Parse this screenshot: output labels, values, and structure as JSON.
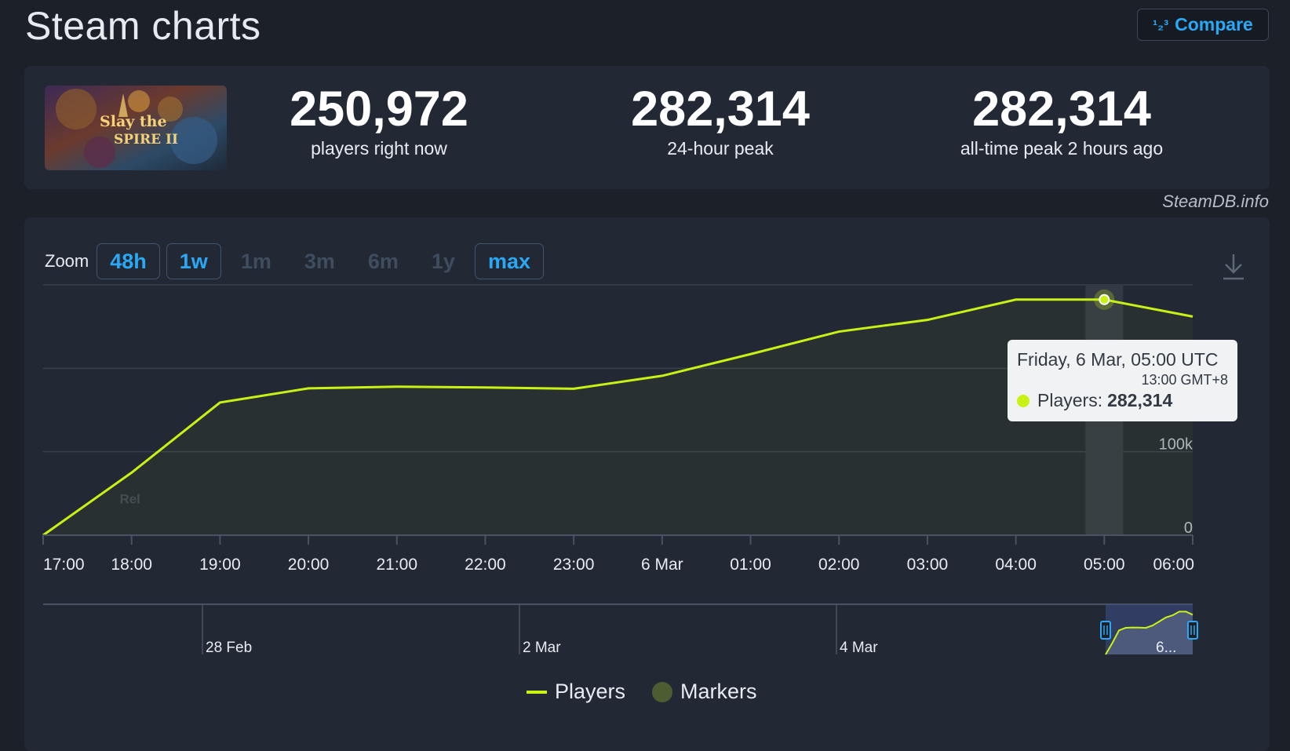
{
  "header": {
    "title": "Steam charts",
    "compare_label": "Compare",
    "compare_icon": "sort-numeric-icon"
  },
  "game": {
    "art_text_line1": "Slay the",
    "art_text_line2": "SPIRE II"
  },
  "stats": [
    {
      "value": "250,972",
      "label": "players right now"
    },
    {
      "value": "282,314",
      "label": "24-hour peak"
    },
    {
      "value": "282,314",
      "label": "all-time peak 2 hours ago"
    }
  ],
  "source": "SteamDB.info",
  "zoom": {
    "label": "Zoom",
    "options": [
      {
        "label": "48h",
        "active": true
      },
      {
        "label": "1w",
        "active": true
      },
      {
        "label": "1m",
        "active": false
      },
      {
        "label": "3m",
        "active": false
      },
      {
        "label": "6m",
        "active": false
      },
      {
        "label": "1y",
        "active": false
      },
      {
        "label": "max",
        "active": true
      }
    ]
  },
  "tooltip": {
    "date": "Friday, 6 Mar, 05:00 UTC",
    "local": "13:00 GMT+8",
    "series_label": "Players:",
    "value": "282,314"
  },
  "legend": [
    {
      "label": "Players"
    },
    {
      "label": "Markers"
    }
  ],
  "colors": {
    "series": "#c8f213",
    "accent": "#2aa8f5",
    "marker": "#4e5d31"
  },
  "chart_data": {
    "type": "line",
    "x": [
      "17:00",
      "18:00",
      "19:00",
      "20:00",
      "21:00",
      "22:00",
      "23:00",
      "6 Mar",
      "01:00",
      "02:00",
      "03:00",
      "04:00",
      "05:00",
      "06:00"
    ],
    "series": [
      {
        "name": "Players",
        "values": [
          0,
          75000,
          159000,
          176000,
          178000,
          177000,
          175500,
          191000,
          217000,
          244000,
          258000,
          282314,
          282314,
          262000
        ]
      }
    ],
    "y_ticks": [
      "0",
      "100k"
    ],
    "ylim": [
      0,
      300000
    ],
    "highlight_x": "05:00",
    "marker_label": "Rel",
    "navigator": {
      "labels": [
        "28 Feb",
        "2 Mar",
        "4 Mar",
        "6..."
      ]
    },
    "grid": true,
    "legend_position": "bottom"
  }
}
